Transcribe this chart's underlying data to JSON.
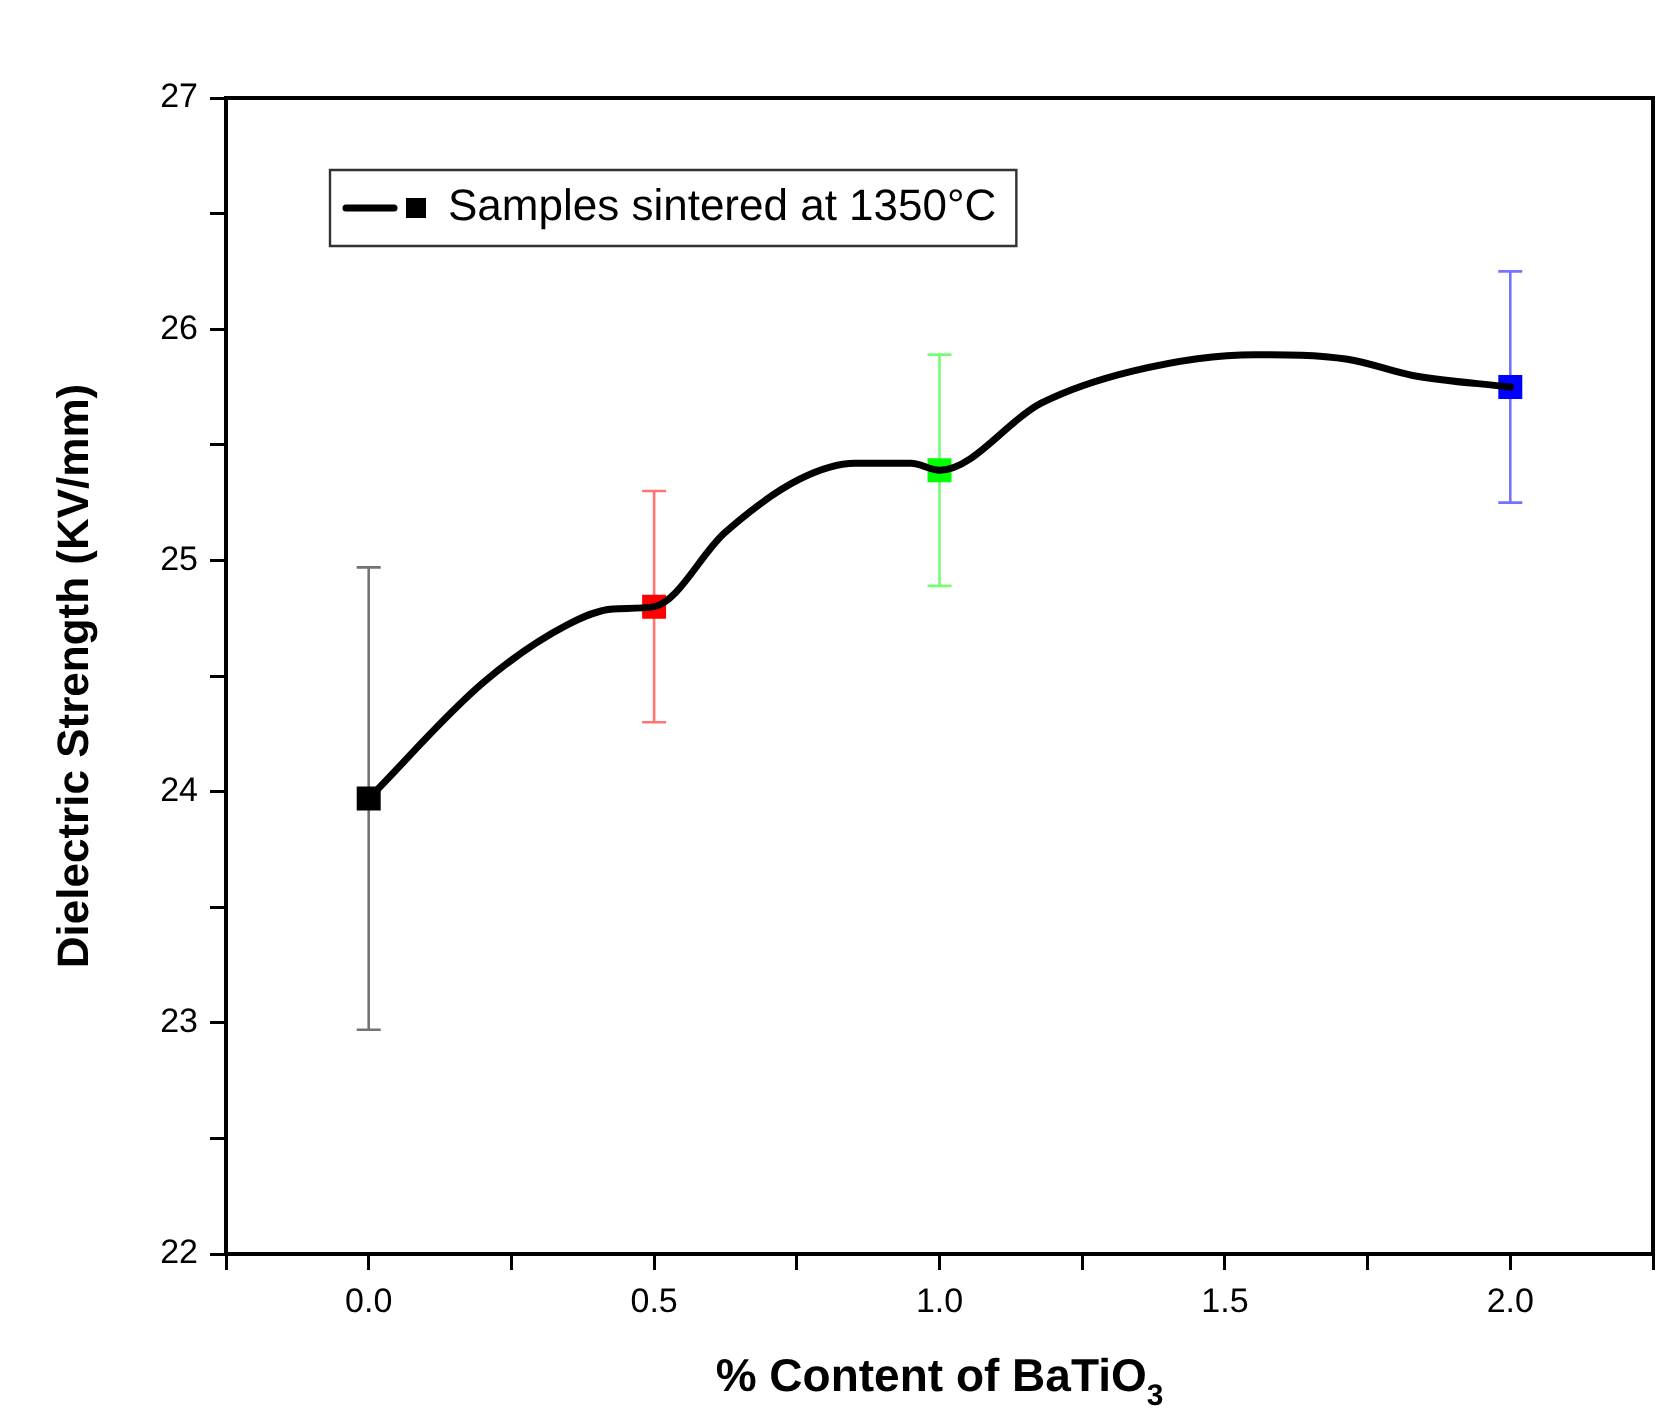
{
  "chart_data": {
    "type": "line",
    "xlabel": "% Content of BaTiO$_{3}$",
    "ylabel": "Dielectric Strength (KV/mm)",
    "xlim": [
      -0.25,
      2.25
    ],
    "ylim": [
      22,
      27
    ],
    "xticks": [
      {
        "value": -0.25,
        "label": null
      },
      {
        "value": 0,
        "label": "0.0"
      },
      {
        "value": 0.25,
        "label": null
      },
      0.5,
      {
        "value": 0.75,
        "label": null
      },
      {
        "value": 1,
        "label": "1.0"
      },
      {
        "value": 1.25,
        "label": null
      },
      1.5,
      {
        "value": 1.75,
        "label": null
      },
      {
        "value": 2,
        "label": "2.0"
      },
      {
        "value": 2.25,
        "label": null
      }
    ],
    "yticks": [
      22,
      {
        "value": 22.5,
        "label": null
      },
      23,
      {
        "value": 23.5,
        "label": null
      },
      24,
      {
        "value": 24.5,
        "label": null
      },
      25,
      {
        "value": 25.5,
        "label": null
      },
      26,
      {
        "value": 26.5,
        "label": null
      },
      27
    ],
    "grid": false,
    "legend": "top left",
    "line_style": "solid",
    "series": [
      {
        "color": "#000000",
        "marker": "none",
        "x": [
          0,
          0.2,
          0.347,
          0.428,
          0.5,
          0.624,
          0.754,
          0.852,
          0.95,
          1.0,
          1.178,
          1.34,
          1.552,
          1.715,
          1.829,
          2.0
        ],
        "values": [
          23.97,
          24.47,
          24.72,
          24.79,
          24.8,
          25.12,
          25.35,
          25.42,
          25.42,
          25.39,
          25.68,
          25.82,
          25.89,
          25.87,
          25.8,
          25.75
        ]
      },
      {
        "type": "scatter",
        "name": "Samples sintered at 1350°C",
        "color": "#000000",
        "marker": "square",
        "x": [
          0,
          0.5,
          1.0,
          2.0
        ],
        "values": [
          23.97,
          24.8,
          25.39,
          25.75
        ],
        "colors": [
          "#000000",
          "#ff0000",
          "#00ff00",
          "#0000ff"
        ],
        "errors": [
          1.0,
          0.5,
          0.5,
          0.5
        ]
      }
    ]
  }
}
